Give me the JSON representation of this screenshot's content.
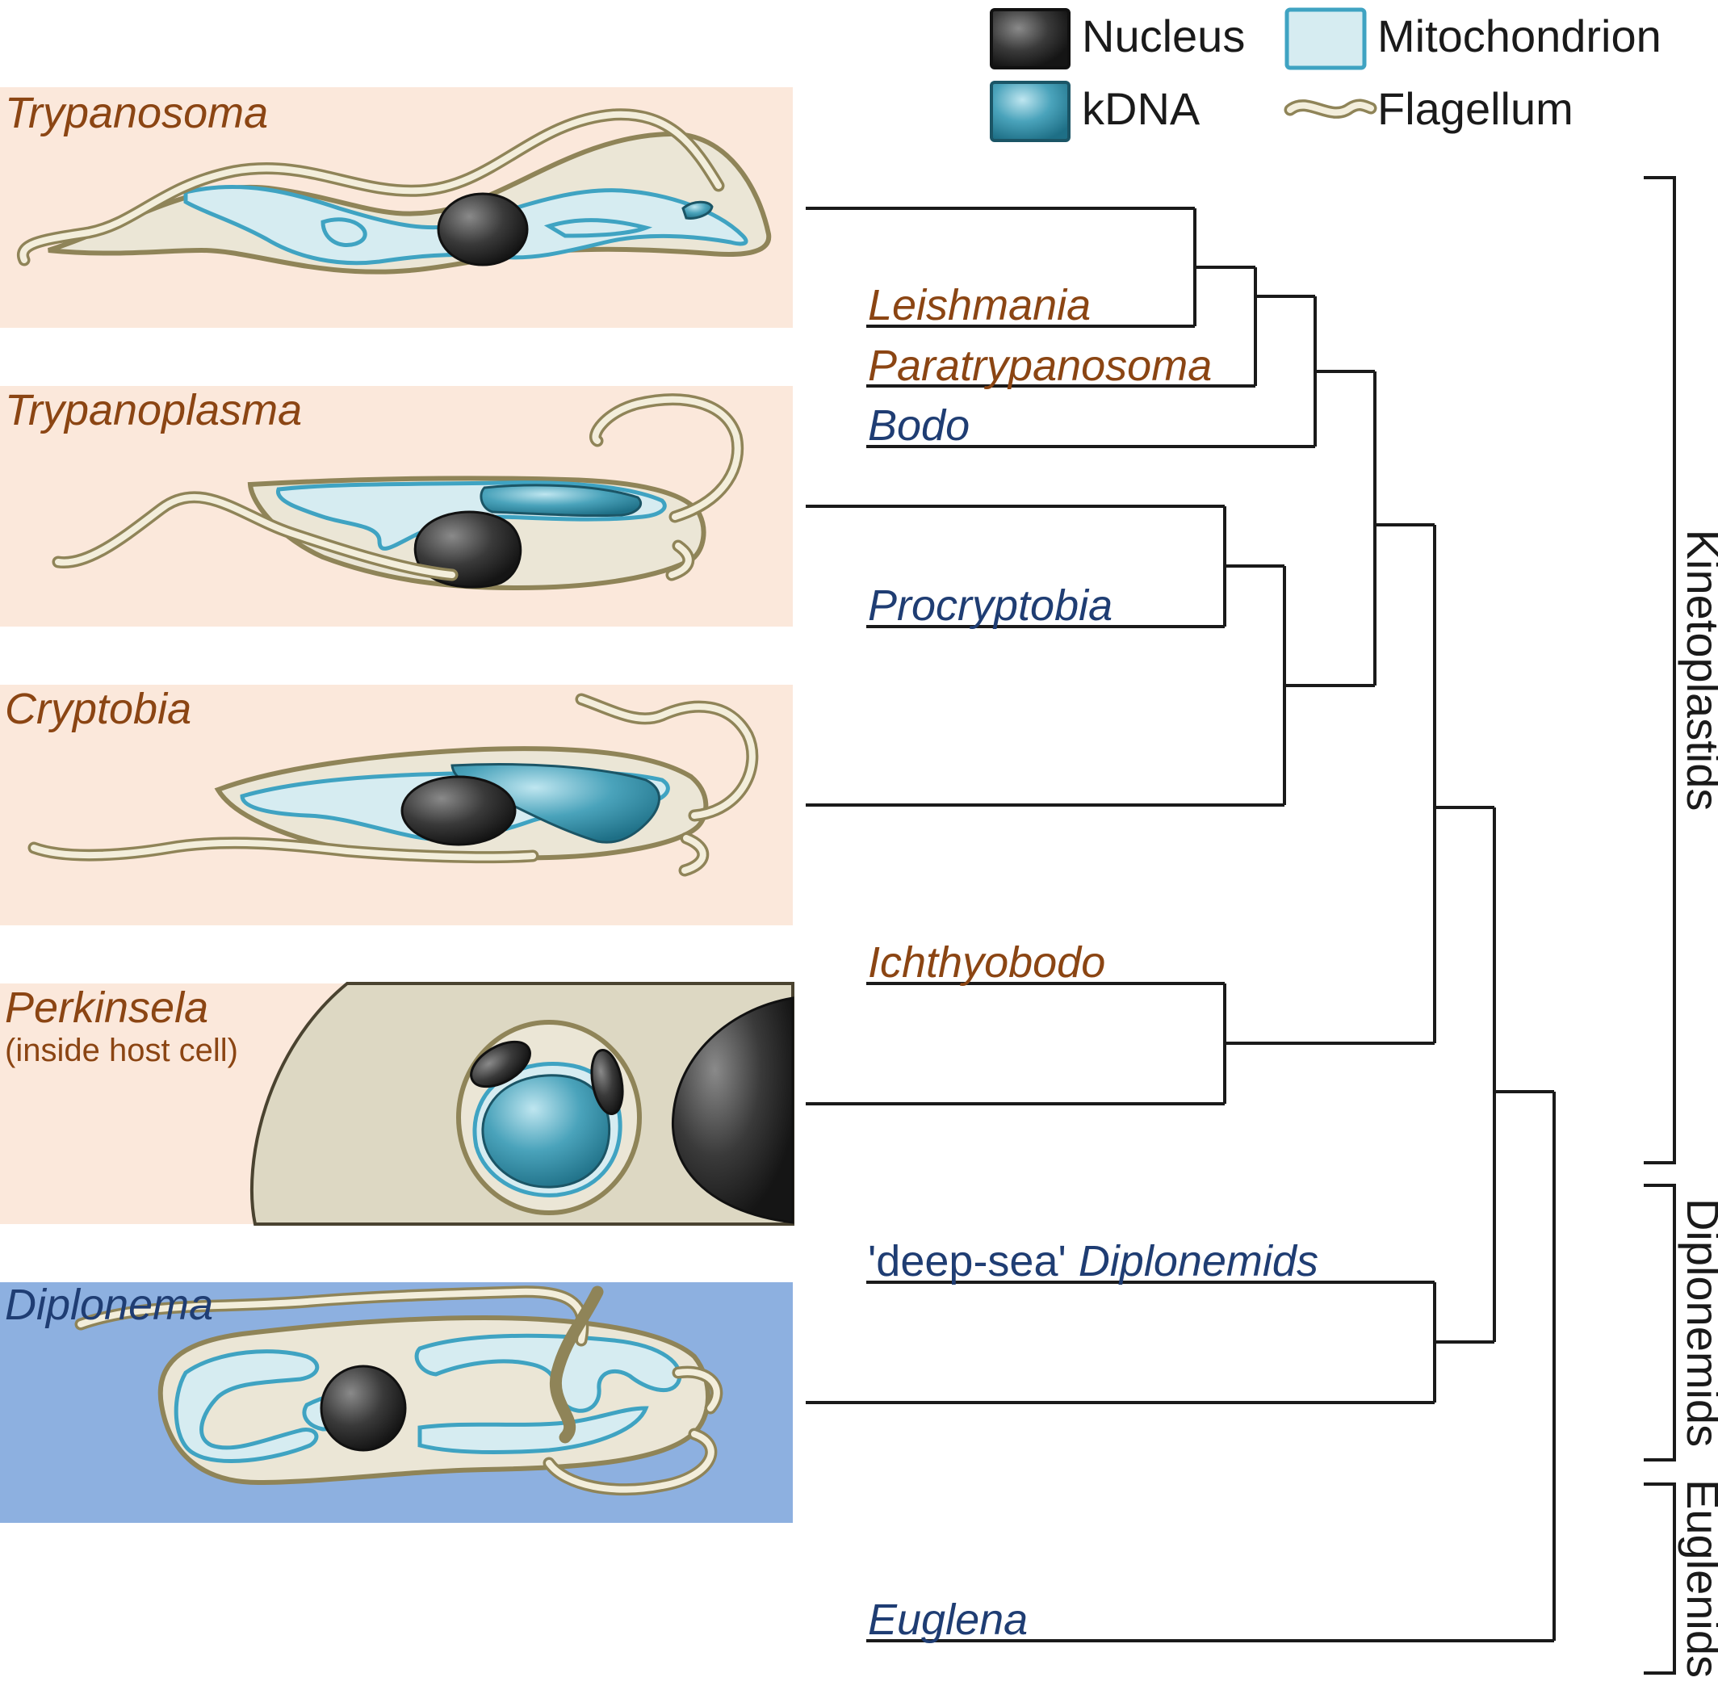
{
  "legend": {
    "nucleus": "Nucleus",
    "mitochondrion": "Mitochondrion",
    "kdna": "kDNA",
    "flagellum": "Flagellum"
  },
  "panels": {
    "trypanosoma": "Trypanosoma",
    "trypanoplasma": "Trypanoplasma",
    "cryptobia": "Cryptobia",
    "perkinsela": "Perkinsela",
    "perkinsela_note": "(inside host cell)",
    "diplonema": "Diplonema"
  },
  "tree_labels": {
    "leishmania": "Leishmania",
    "paratrypanosoma": "Paratrypanosoma",
    "bodo": "Bodo",
    "procryptobia": "Procryptobia",
    "ichthyobodo": "Ichthyobodo",
    "deep_sea_prefix": "'deep-sea' ",
    "diplonemids_taxon": "Diplonemids",
    "euglena": "Euglena"
  },
  "clades": {
    "kinetoplastids": "Kinetoplastids",
    "diplonemids": "Diplonemids",
    "euglenids": "Euglenids"
  },
  "colors": {
    "parasitic_label": "#8b4513",
    "free_living_label": "#1f3d73",
    "kinetoplastid_panel": "#fbe8db",
    "diplonemid_panel": "#8db0e0",
    "nucleus": "#3a3a3a",
    "kdna": "#3a90a8",
    "mitochondrion": "#d6ecf1",
    "cell_outline": "#8f8458"
  }
}
